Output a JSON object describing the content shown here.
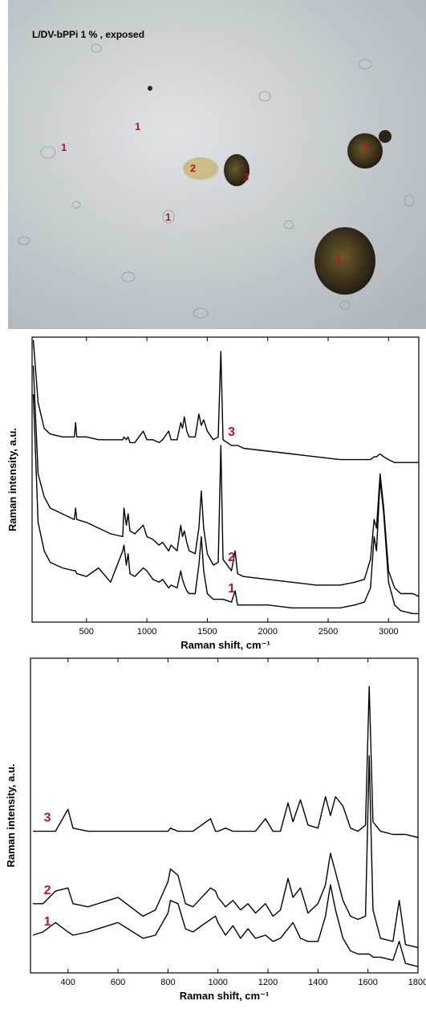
{
  "image": {
    "caption": "L/DV-bPPi 1 % , exposed",
    "markers": [
      "1",
      "1",
      "2",
      "3",
      "3",
      "3",
      "1"
    ]
  },
  "chart_data": [
    {
      "type": "line",
      "x_label": "Raman shift, cm⁻¹",
      "y_label": "Raman intensity, a.u.",
      "xlim": [
        50,
        3250
      ],
      "xticks": [
        500,
        1000,
        1500,
        2000,
        2500,
        3000
      ],
      "ylim": [
        0,
        100
      ],
      "label_color": "#c0141c",
      "x": [
        60,
        100,
        150,
        200,
        300,
        400,
        410,
        420,
        500,
        600,
        700,
        800,
        810,
        830,
        845,
        860,
        900,
        970,
        1000,
        1050,
        1100,
        1130,
        1180,
        1200,
        1250,
        1280,
        1295,
        1310,
        1330,
        1350,
        1400,
        1430,
        1450,
        1470,
        1500,
        1550,
        1590,
        1612,
        1630,
        1700,
        1730,
        1750,
        1800,
        2000,
        2200,
        2400,
        2600,
        2720,
        2800,
        2850,
        2880,
        2900,
        2930,
        2960,
        3000,
        3050,
        3100,
        3200,
        3250
      ],
      "series": [
        {
          "name": "3",
          "color": "#000000",
          "values": [
            99,
            77,
            68,
            66,
            65,
            65,
            70,
            65,
            65,
            64,
            64,
            64,
            65,
            64,
            65,
            63,
            63,
            67,
            64,
            64,
            63,
            64,
            67,
            64,
            64,
            70,
            68,
            72,
            67,
            65,
            65,
            73,
            69,
            71,
            67,
            64,
            65,
            95,
            64,
            62,
            62,
            62,
            61,
            60,
            59,
            58,
            57,
            57,
            57,
            57,
            58,
            58,
            59,
            58,
            57,
            56,
            56,
            56,
            56
          ]
        },
        {
          "name": "2",
          "color": "#000000",
          "values": [
            90,
            52,
            44,
            40,
            38,
            36,
            40,
            36,
            35,
            33,
            31,
            30,
            40,
            34,
            38,
            32,
            31,
            34,
            30,
            29,
            27,
            28,
            25,
            27,
            25,
            34,
            30,
            32,
            28,
            25,
            24,
            33,
            46,
            33,
            24,
            20,
            21,
            62,
            22,
            18,
            25,
            17,
            16,
            15,
            14,
            13,
            13,
            14,
            15,
            22,
            36,
            33,
            52,
            40,
            18,
            12,
            10,
            10,
            9
          ]
        },
        {
          "name": "1",
          "color": "#000000",
          "values": [
            80,
            35,
            25,
            21,
            19,
            18,
            18,
            17,
            16,
            19,
            14,
            25,
            27,
            20,
            24,
            17,
            16,
            19,
            18,
            15,
            14,
            15,
            12,
            13,
            12,
            18,
            15,
            13,
            11,
            10,
            10,
            20,
            30,
            18,
            10,
            8,
            8,
            8,
            8,
            7,
            11,
            6,
            6,
            6,
            5,
            5,
            5,
            6,
            7,
            12,
            30,
            25,
            50,
            38,
            14,
            6,
            4,
            3,
            3
          ]
        }
      ]
    },
    {
      "type": "line",
      "x_label": "Raman shift, cm⁻¹",
      "y_label": "Raman intensity, a.u.",
      "xlim": [
        250,
        1800
      ],
      "xticks": [
        400,
        600,
        800,
        1000,
        1200,
        1400,
        1600,
        1800
      ],
      "ylim": [
        0,
        100
      ],
      "label_color": "#c0141c",
      "x": [
        260,
        300,
        350,
        400,
        420,
        480,
        600,
        700,
        750,
        800,
        810,
        840,
        870,
        900,
        970,
        990,
        1000,
        1030,
        1060,
        1090,
        1120,
        1150,
        1190,
        1220,
        1250,
        1280,
        1300,
        1330,
        1360,
        1400,
        1430,
        1450,
        1470,
        1500,
        1530,
        1560,
        1590,
        1605,
        1620,
        1650,
        1700,
        1725,
        1750,
        1800
      ],
      "series": [
        {
          "name": "3",
          "color": "#000000",
          "values": [
            45,
            45,
            45,
            52,
            46,
            45,
            45,
            45,
            45,
            45,
            46,
            45,
            45,
            45,
            49,
            45,
            45,
            46,
            45,
            45,
            45,
            45,
            49,
            45,
            45,
            54,
            48,
            55,
            47,
            46,
            56,
            50,
            56,
            53,
            46,
            45,
            47,
            91,
            48,
            45,
            44,
            44,
            44,
            43
          ]
        },
        {
          "name": "2",
          "color": "#000000",
          "values": [
            22,
            22,
            26,
            27,
            22,
            21,
            24,
            18,
            20,
            29,
            33,
            31,
            22,
            21,
            27,
            26,
            24,
            21,
            23,
            20,
            22,
            19,
            22,
            18,
            20,
            30,
            24,
            27,
            19,
            22,
            28,
            38,
            32,
            23,
            18,
            17,
            18,
            69,
            20,
            11,
            10,
            23,
            9,
            8
          ]
        },
        {
          "name": "1",
          "color": "#000000",
          "values": [
            12,
            13,
            16,
            13,
            12,
            13,
            16,
            11,
            12,
            19,
            23,
            22,
            14,
            13,
            17,
            18,
            16,
            12,
            15,
            11,
            14,
            11,
            12,
            10,
            11,
            14,
            16,
            11,
            10,
            10,
            18,
            28,
            20,
            11,
            7,
            6,
            6,
            6,
            5,
            5,
            4,
            10,
            3,
            2
          ]
        }
      ]
    }
  ]
}
